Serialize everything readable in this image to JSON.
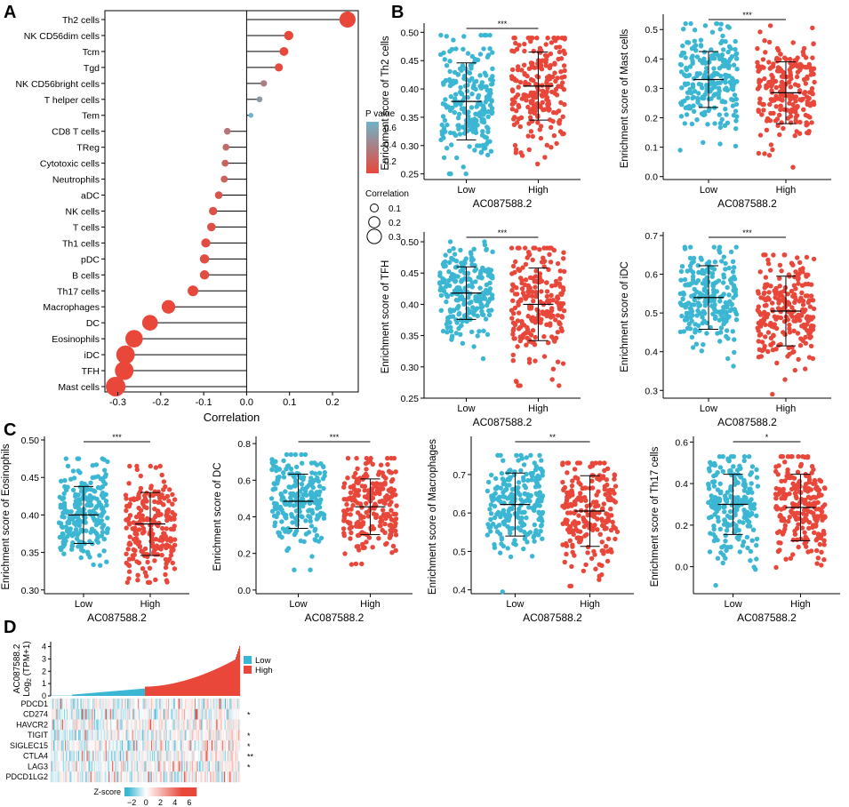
{
  "panel_labels": [
    "A",
    "B",
    "C",
    "D"
  ],
  "colors": {
    "low": "#3bb6d3",
    "high": "#e8473a",
    "pv_high": "#e8473a",
    "pv_low": "#6fb3c9"
  },
  "chart_data": [
    {
      "id": "A",
      "type": "lollipop",
      "title": "",
      "xlabel": "Correlation",
      "xlim": [
        -0.33,
        0.26
      ],
      "xticks": [
        -0.3,
        -0.2,
        -0.1,
        0.0,
        0.1,
        0.2
      ],
      "xtick_labels": [
        "-0.3",
        "-0.2",
        "-0.1",
        "0.0",
        "0.1",
        "0.2"
      ],
      "categories": [
        "Th2 cells",
        "NK CD56dim cells",
        "Tcm",
        "Tgd",
        "NK CD56bright cells",
        "T helper cells",
        "Tem",
        "CD8 T cells",
        "TReg",
        "Cytotoxic cells",
        "Neutrophils",
        "aDC",
        "NK cells",
        "T cells",
        "Th1 cells",
        "pDC",
        "B cells",
        "Th17 cells",
        "Macrophages",
        "DC",
        "Eosinophils",
        "iDC",
        "TFH",
        "Mast cells"
      ],
      "values": [
        0.235,
        0.098,
        0.087,
        0.075,
        0.04,
        0.03,
        0.01,
        -0.045,
        -0.048,
        -0.05,
        -0.052,
        -0.065,
        -0.078,
        -0.082,
        -0.095,
        -0.098,
        -0.098,
        -0.125,
        -0.182,
        -0.225,
        -0.262,
        -0.282,
        -0.285,
        -0.305
      ],
      "pvalues": [
        0.0,
        0.01,
        0.01,
        0.02,
        0.3,
        0.45,
        0.6,
        0.25,
        0.2,
        0.15,
        0.15,
        0.08,
        0.06,
        0.05,
        0.03,
        0.03,
        0.03,
        0.01,
        0.0,
        0.0,
        0.0,
        0.0,
        0.0,
        0.0
      ],
      "legend_pvalue": {
        "title": "P value",
        "ticks": [
          "0.6",
          "0.4",
          "0.2"
        ]
      },
      "legend_corr": {
        "title": "Correlation",
        "ticks": [
          "0.1",
          "0.2",
          "0.3"
        ]
      }
    },
    {
      "id": "B1",
      "type": "strip",
      "ylabel": "Enrichment score of Th2 cells",
      "xlabel": "AC087588.2",
      "categories": [
        "Low",
        "High"
      ],
      "ylim": [
        0.24,
        0.51
      ],
      "yticks": [
        0.25,
        0.3,
        0.35,
        0.4,
        0.45,
        0.5
      ],
      "ytick_labels": [
        "0.25",
        "0.30",
        "0.35",
        "0.40",
        "0.45",
        "0.50"
      ],
      "low": {
        "mean": 0.378,
        "sd": 0.068,
        "min": 0.25,
        "max": 0.495
      },
      "high": {
        "mean": 0.405,
        "sd": 0.06,
        "min": 0.265,
        "max": 0.49
      },
      "sig": "***"
    },
    {
      "id": "B2",
      "type": "strip",
      "ylabel": "Enrichment score of Mast cells",
      "xlabel": "AC087588.2",
      "categories": [
        "Low",
        "High"
      ],
      "ylim": [
        -0.01,
        0.54
      ],
      "yticks": [
        0.0,
        0.1,
        0.2,
        0.3,
        0.4,
        0.5
      ],
      "ytick_labels": [
        "0.0",
        "0.1",
        "0.2",
        "0.3",
        "0.4",
        "0.5"
      ],
      "low": {
        "mean": 0.33,
        "sd": 0.095,
        "min": 0.06,
        "max": 0.52
      },
      "high": {
        "mean": 0.285,
        "sd": 0.105,
        "min": 0.02,
        "max": 0.53
      },
      "sig": "***"
    },
    {
      "id": "B3",
      "type": "strip",
      "ylabel": "Enrichment score of TFH",
      "xlabel": "AC087588.2",
      "categories": [
        "Low",
        "High"
      ],
      "ylim": [
        0.25,
        0.51
      ],
      "yticks": [
        0.25,
        0.3,
        0.35,
        0.4,
        0.45,
        0.5
      ],
      "ytick_labels": [
        "0.25",
        "0.30",
        "0.35",
        "0.40",
        "0.45",
        "0.50"
      ],
      "low": {
        "mean": 0.418,
        "sd": 0.042,
        "min": 0.3,
        "max": 0.5
      },
      "high": {
        "mean": 0.4,
        "sd": 0.058,
        "min": 0.27,
        "max": 0.49
      },
      "sig": "***"
    },
    {
      "id": "B4",
      "type": "strip",
      "ylabel": "Enrichment score of iDC",
      "xlabel": "AC087588.2",
      "categories": [
        "Low",
        "High"
      ],
      "ylim": [
        0.28,
        0.7
      ],
      "yticks": [
        0.3,
        0.4,
        0.5,
        0.6,
        0.7
      ],
      "ytick_labels": [
        "0.3",
        "0.4",
        "0.5",
        "0.6",
        "0.7"
      ],
      "low": {
        "mean": 0.54,
        "sd": 0.082,
        "min": 0.32,
        "max": 0.67
      },
      "high": {
        "mean": 0.505,
        "sd": 0.09,
        "min": 0.29,
        "max": 0.65
      },
      "sig": "***"
    },
    {
      "id": "C1",
      "type": "strip",
      "ylabel": "Enrichment score of Eosinophils",
      "xlabel": "AC087588.2",
      "categories": [
        "Low",
        "High"
      ],
      "ylim": [
        0.295,
        0.5
      ],
      "yticks": [
        0.3,
        0.35,
        0.4,
        0.45,
        0.5
      ],
      "ytick_labels": [
        "0.30",
        "0.35",
        "0.40",
        "0.45",
        "0.50"
      ],
      "low": {
        "mean": 0.4,
        "sd": 0.038,
        "min": 0.295,
        "max": 0.475
      },
      "high": {
        "mean": 0.388,
        "sd": 0.042,
        "min": 0.31,
        "max": 0.465
      },
      "sig": "***"
    },
    {
      "id": "C2",
      "type": "strip",
      "ylabel": "Enrichment score of DC",
      "xlabel": "AC087588.2",
      "categories": [
        "Low",
        "High"
      ],
      "ylim": [
        -0.02,
        0.82
      ],
      "yticks": [
        0.0,
        0.2,
        0.4,
        0.6,
        0.8
      ],
      "ytick_labels": [
        "0.0",
        "0.2",
        "0.4",
        "0.6",
        "0.8"
      ],
      "low": {
        "mean": 0.485,
        "sd": 0.148,
        "min": 0.11,
        "max": 0.74
      },
      "high": {
        "mean": 0.455,
        "sd": 0.152,
        "min": 0.0,
        "max": 0.72
      },
      "sig": "***"
    },
    {
      "id": "C3",
      "type": "strip",
      "ylabel": "Enrichment score of Macrophages",
      "xlabel": "AC087588.2",
      "categories": [
        "Low",
        "High"
      ],
      "ylim": [
        0.39,
        0.79
      ],
      "yticks": [
        0.4,
        0.5,
        0.6,
        0.7
      ],
      "ytick_labels": [
        "0.4",
        "0.5",
        "0.6",
        "0.7"
      ],
      "low": {
        "mean": 0.622,
        "sd": 0.082,
        "min": 0.395,
        "max": 0.75
      },
      "high": {
        "mean": 0.605,
        "sd": 0.092,
        "min": 0.41,
        "max": 0.73
      },
      "sig": "**"
    },
    {
      "id": "C4",
      "type": "strip",
      "ylabel": "Enrichment score of Th17 cells",
      "xlabel": "AC087588.2",
      "categories": [
        "Low",
        "High"
      ],
      "ylim": [
        -0.13,
        0.61
      ],
      "yticks": [
        0.0,
        0.2,
        0.4,
        0.6
      ],
      "ytick_labels": [
        "0.0",
        "0.2",
        "0.4",
        "0.6"
      ],
      "low": {
        "mean": 0.3,
        "sd": 0.145,
        "min": -0.09,
        "max": 0.53
      },
      "high": {
        "mean": 0.285,
        "sd": 0.16,
        "min": -0.11,
        "max": 0.53
      },
      "sig": "*"
    },
    {
      "id": "D",
      "type": "heatmap",
      "ylabel_line1": "AC087588.2",
      "ylabel_line2": "Log",
      "ylabel_sub": "2",
      "ylabel_line3": " (TPM+1)",
      "bar_yticks": [
        0,
        1,
        2,
        3,
        4
      ],
      "bar_ytick_labels": [
        "0",
        "1",
        "2",
        "3",
        "4"
      ],
      "bar_ylim": [
        0,
        4.4
      ],
      "legend": [
        "Low",
        "High"
      ],
      "genes": [
        "PDCD1",
        "CD274",
        "HAVCR2",
        "TIGIT",
        "SIGLEC15",
        "CTLA4",
        "LAG3",
        "PDCD1LG2"
      ],
      "gene_sig": [
        "",
        "*",
        "",
        "*",
        "*",
        "**",
        "*",
        ""
      ],
      "zscore_title": "Z-score",
      "zscore_ticks": [
        -2,
        0,
        2,
        4,
        6
      ],
      "zscore_tick_labels": [
        "−2",
        "0",
        "2",
        "4",
        "6"
      ],
      "zscore_range": [
        -3,
        7
      ]
    }
  ]
}
